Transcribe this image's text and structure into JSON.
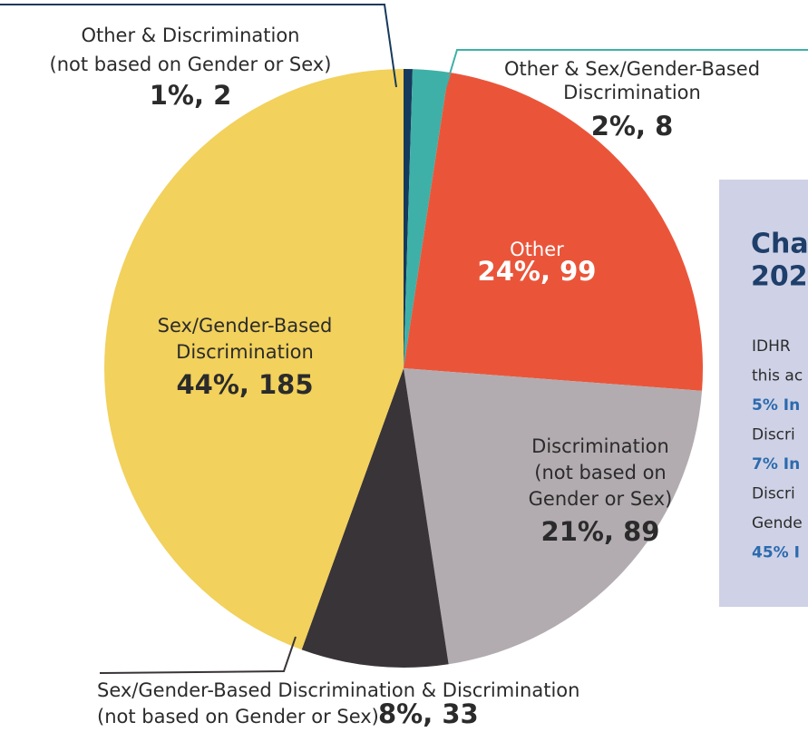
{
  "chart_data": {
    "type": "pie",
    "categories": [
      [
        "Other & Discrimination",
        "(not based on Gender or Sex)"
      ],
      [
        "Other & Sex/Gender-Based",
        "Discrimination"
      ],
      [
        "Other"
      ],
      [
        "Discrimination",
        "(not based on",
        "Gender or Sex)"
      ],
      [
        "Sex/Gender-Based Discrimination & Discrimination",
        "(not based on Gender or Sex)"
      ],
      [
        "Sex/Gender-Based",
        "Discrimination"
      ]
    ],
    "values": [
      2,
      8,
      99,
      89,
      33,
      185
    ],
    "value_labels": [
      "1%, 2",
      "2%, 8",
      "24%, 99",
      "21%, 89",
      "8%, 33",
      "44%, 185"
    ],
    "colors": [
      "#163a5c",
      "#3fb0a7",
      "#ea553a",
      "#b2acb0",
      "#393438",
      "#f2d15c"
    ]
  },
  "panel": {
    "title_lines": [
      "Cha",
      "202"
    ],
    "lines": [
      {
        "text": "IDHR",
        "bold": false
      },
      {
        "text": "this ac",
        "bold": false
      },
      {
        "text": "5% In",
        "bold": true
      },
      {
        "text": "Discri",
        "bold": false
      },
      {
        "text": "7% In",
        "bold": true
      },
      {
        "text": "Discri",
        "bold": false
      },
      {
        "text": "Gende",
        "bold": false
      },
      {
        "text": "45% I",
        "bold": true
      }
    ]
  }
}
